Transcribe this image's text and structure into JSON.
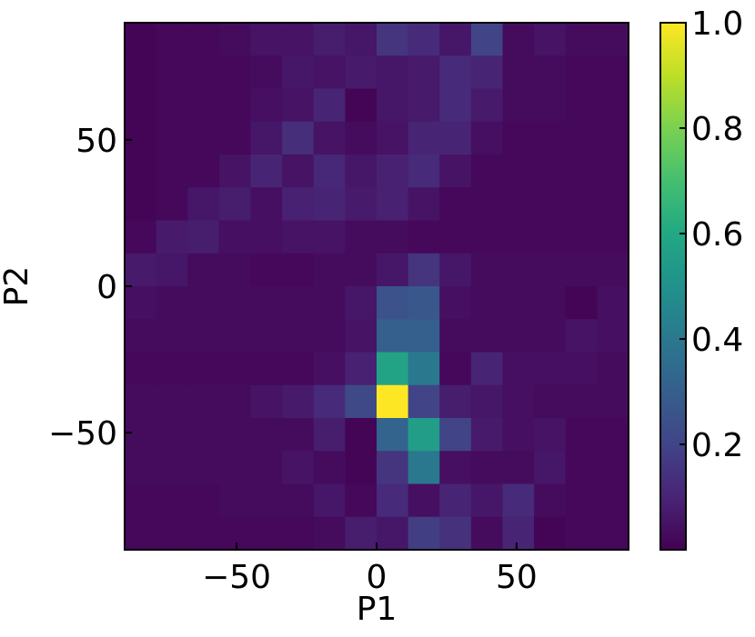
{
  "chart_data": {
    "type": "heatmap",
    "title": "",
    "xlabel": "P1",
    "ylabel": "P2",
    "xlim": [
      -90,
      90
    ],
    "ylim": [
      -90,
      90
    ],
    "bin_width": 11.25,
    "x_ticks": [
      {
        "value": -50,
        "label": "−50"
      },
      {
        "value": 0,
        "label": "0"
      },
      {
        "value": 50,
        "label": "50"
      }
    ],
    "y_ticks": [
      {
        "value": -50,
        "label": "−50"
      },
      {
        "value": 0,
        "label": "0"
      },
      {
        "value": 50,
        "label": "50"
      }
    ],
    "colorbar": {
      "colormap": "viridis",
      "range": [
        0.0,
        1.0
      ],
      "ticks": [
        {
          "value": 0.2,
          "label": "0.2"
        },
        {
          "value": 0.4,
          "label": "0.4"
        },
        {
          "value": 0.6,
          "label": "0.6"
        },
        {
          "value": 0.8,
          "label": "0.8"
        },
        {
          "value": 1.0,
          "label": "1.0"
        }
      ]
    },
    "grid": false,
    "z_rows_top_to_bottom": [
      [
        0.01,
        0.02,
        0.02,
        0.03,
        0.05,
        0.05,
        0.08,
        0.06,
        0.15,
        0.12,
        0.06,
        0.2,
        0.03,
        0.05,
        0.03,
        0.03
      ],
      [
        0.01,
        0.02,
        0.02,
        0.02,
        0.03,
        0.06,
        0.05,
        0.07,
        0.06,
        0.07,
        0.12,
        0.1,
        0.03,
        0.03,
        0.02,
        0.02
      ],
      [
        0.01,
        0.02,
        0.02,
        0.02,
        0.04,
        0.05,
        0.1,
        0.01,
        0.06,
        0.07,
        0.12,
        0.07,
        0.03,
        0.03,
        0.02,
        0.02
      ],
      [
        0.01,
        0.02,
        0.02,
        0.02,
        0.06,
        0.13,
        0.05,
        0.03,
        0.05,
        0.1,
        0.1,
        0.04,
        0.02,
        0.02,
        0.02,
        0.02
      ],
      [
        0.01,
        0.02,
        0.02,
        0.05,
        0.1,
        0.05,
        0.11,
        0.06,
        0.09,
        0.12,
        0.05,
        0.02,
        0.02,
        0.02,
        0.02,
        0.02
      ],
      [
        0.01,
        0.02,
        0.06,
        0.08,
        0.04,
        0.09,
        0.1,
        0.07,
        0.09,
        0.05,
        0.02,
        0.02,
        0.02,
        0.02,
        0.02,
        0.02
      ],
      [
        0.02,
        0.07,
        0.08,
        0.04,
        0.04,
        0.05,
        0.05,
        0.03,
        0.03,
        0.02,
        0.02,
        0.02,
        0.02,
        0.02,
        0.02,
        0.02
      ],
      [
        0.07,
        0.06,
        0.03,
        0.03,
        0.02,
        0.02,
        0.03,
        0.03,
        0.06,
        0.15,
        0.06,
        0.03,
        0.03,
        0.03,
        0.03,
        0.03
      ],
      [
        0.04,
        0.03,
        0.03,
        0.03,
        0.03,
        0.03,
        0.03,
        0.06,
        0.25,
        0.27,
        0.04,
        0.03,
        0.03,
        0.03,
        0.01,
        0.04
      ],
      [
        0.03,
        0.03,
        0.03,
        0.03,
        0.03,
        0.03,
        0.03,
        0.05,
        0.3,
        0.3,
        0.03,
        0.03,
        0.03,
        0.03,
        0.05,
        0.04
      ],
      [
        0.02,
        0.02,
        0.02,
        0.02,
        0.02,
        0.02,
        0.04,
        0.09,
        0.58,
        0.4,
        0.02,
        0.1,
        0.04,
        0.04,
        0.04,
        0.03
      ],
      [
        0.03,
        0.03,
        0.03,
        0.03,
        0.05,
        0.07,
        0.12,
        0.22,
        1.0,
        0.2,
        0.08,
        0.06,
        0.04,
        0.03,
        0.03,
        0.03
      ],
      [
        0.03,
        0.03,
        0.03,
        0.03,
        0.03,
        0.03,
        0.08,
        0.01,
        0.32,
        0.55,
        0.2,
        0.07,
        0.04,
        0.05,
        0.02,
        0.02
      ],
      [
        0.03,
        0.03,
        0.03,
        0.03,
        0.03,
        0.05,
        0.03,
        0.01,
        0.15,
        0.4,
        0.04,
        0.03,
        0.03,
        0.06,
        0.02,
        0.02
      ],
      [
        0.02,
        0.02,
        0.02,
        0.03,
        0.03,
        0.03,
        0.06,
        0.02,
        0.12,
        0.04,
        0.1,
        0.06,
        0.12,
        0.03,
        0.02,
        0.02
      ],
      [
        0.02,
        0.02,
        0.02,
        0.02,
        0.02,
        0.02,
        0.03,
        0.08,
        0.06,
        0.18,
        0.14,
        0.03,
        0.1,
        0.01,
        0.02,
        0.02
      ]
    ]
  }
}
